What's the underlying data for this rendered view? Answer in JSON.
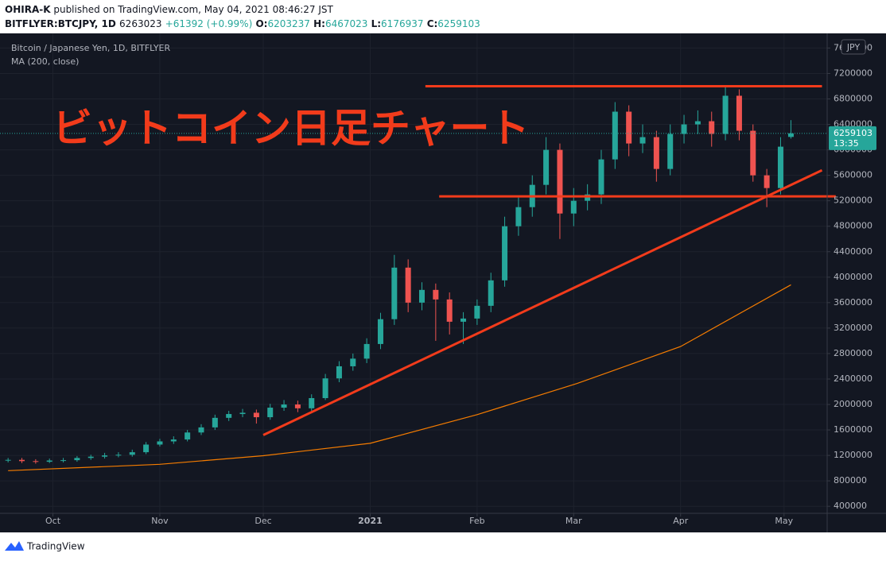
{
  "header": {
    "author": "OHIRA-K",
    "published": "published on TradingView.com, May 04, 2021 08:46:27 JST",
    "symbol": "BITFLYER:BTCJPY, 1D",
    "last": 6263023,
    "change": "+61392 (+0.99%)",
    "ohlc": [
      {
        "label": "O:",
        "value": 6203237
      },
      {
        "label": "H:",
        "value": 6467023
      },
      {
        "label": "L:",
        "value": 6176937
      },
      {
        "label": "C:",
        "value": 6259103
      }
    ]
  },
  "footer": {
    "brand": "TradingView"
  },
  "chart_data": {
    "type": "candlestick",
    "legend_title": "Bitcoin / Japanese Yen, 1D, BITFLYER",
    "annotation": "ビットコイン日足チャート",
    "currency": "JPY",
    "last_price_time": "13:35",
    "up_color": "#26a69a",
    "down_color": "#ef5350",
    "grid": true,
    "x": [
      0,
      4,
      8,
      12,
      16,
      20,
      24,
      28,
      32,
      36,
      40,
      44,
      48,
      52,
      56,
      60,
      64,
      68,
      72,
      76,
      80,
      84,
      88,
      92,
      96,
      100,
      104,
      108,
      112,
      116,
      120,
      124,
      128,
      132,
      136,
      140,
      144,
      148,
      152,
      156,
      160,
      164,
      168,
      172,
      176,
      180,
      184,
      188,
      192,
      196,
      200,
      204,
      208,
      212,
      216,
      220,
      224,
      227
    ],
    "open": [
      1120000,
      1130000,
      1110000,
      1100000,
      1120000,
      1125000,
      1160000,
      1180000,
      1200000,
      1210000,
      1250000,
      1370000,
      1420000,
      1450000,
      1560000,
      1640000,
      1790000,
      1850000,
      1870000,
      1800000,
      1950000,
      2000000,
      1940000,
      2100000,
      2410000,
      2600000,
      2720000,
      2950000,
      3340000,
      4150000,
      3600000,
      3800000,
      3650000,
      3300000,
      3350000,
      3550000,
      3950000,
      4800000,
      5100000,
      5450000,
      6000000,
      5000000,
      5200000,
      5300000,
      5850000,
      6600000,
      6100000,
      6200000,
      5700000,
      6250000,
      6400000,
      6450000,
      6250000,
      6850000,
      6300000,
      5600000,
      5400000,
      6203237
    ],
    "high": [
      1160000,
      1160000,
      1140000,
      1150000,
      1160000,
      1190000,
      1210000,
      1240000,
      1250000,
      1290000,
      1410000,
      1460000,
      1500000,
      1600000,
      1690000,
      1840000,
      1900000,
      1930000,
      1920000,
      2010000,
      2070000,
      2060000,
      2160000,
      2480000,
      2680000,
      2800000,
      3040000,
      3440000,
      4350000,
      4280000,
      3920000,
      3900000,
      3760000,
      3450000,
      3650000,
      4070000,
      4950000,
      5250000,
      5600000,
      6200000,
      6100000,
      5400000,
      5460000,
      6000000,
      6750000,
      6700000,
      6400000,
      6300000,
      6400000,
      6550000,
      6620000,
      6600000,
      7000000,
      6950000,
      6400000,
      5700000,
      6200000,
      6467023
    ],
    "low": [
      1090000,
      1080000,
      1070000,
      1080000,
      1090000,
      1100000,
      1130000,
      1150000,
      1170000,
      1180000,
      1220000,
      1340000,
      1380000,
      1420000,
      1520000,
      1600000,
      1740000,
      1800000,
      1700000,
      1760000,
      1900000,
      1880000,
      1900000,
      2070000,
      2350000,
      2530000,
      2650000,
      2870000,
      3250000,
      3450000,
      3480000,
      3000000,
      3100000,
      2950000,
      3250000,
      3450000,
      3850000,
      4650000,
      4950000,
      5300000,
      4600000,
      4800000,
      5050000,
      5150000,
      5700000,
      5900000,
      5950000,
      5500000,
      5600000,
      6100000,
      6250000,
      6050000,
      6150000,
      6150000,
      5500000,
      5100000,
      5300000,
      6176937
    ],
    "close": [
      1130000,
      1110000,
      1100000,
      1120000,
      1125000,
      1160000,
      1180000,
      1200000,
      1210000,
      1250000,
      1370000,
      1420000,
      1450000,
      1560000,
      1640000,
      1790000,
      1850000,
      1870000,
      1800000,
      1950000,
      2000000,
      1940000,
      2100000,
      2410000,
      2600000,
      2720000,
      2950000,
      3340000,
      4150000,
      3600000,
      3800000,
      3650000,
      3300000,
      3350000,
      3550000,
      3950000,
      4800000,
      5100000,
      5450000,
      6000000,
      5000000,
      5200000,
      5300000,
      5850000,
      6600000,
      6100000,
      6200000,
      5700000,
      6250000,
      6400000,
      6450000,
      6250000,
      6850000,
      6300000,
      5600000,
      5400000,
      6050000,
      6259103
    ],
    "moving_average": {
      "name": "MA (200, close)",
      "color": "#f57c00",
      "x": [
        0,
        44,
        74,
        105,
        136,
        165,
        195,
        227
      ],
      "values": [
        960000,
        1060000,
        1195000,
        1390000,
        1840000,
        2330000,
        2910000,
        3880000
      ]
    },
    "drawings": {
      "color": "#f23b1b",
      "lines": [
        {
          "x": [
            121,
            236
          ],
          "y": [
            7000000,
            7000000
          ]
        },
        {
          "x": [
            125,
            240
          ],
          "y": [
            5270000,
            5270000
          ]
        },
        {
          "x": [
            74,
            236
          ],
          "y": [
            1520000,
            5680000
          ]
        }
      ]
    },
    "xlim": [
      -0.5,
      237.5
    ],
    "ylim": [
      290000,
      7830000
    ],
    "xticks": [
      {
        "value": 13,
        "label": "Oct"
      },
      {
        "value": 44,
        "label": "Nov"
      },
      {
        "value": 74,
        "label": "Dec"
      },
      {
        "value": 105,
        "label": "2021"
      },
      {
        "value": 136,
        "label": "Feb"
      },
      {
        "value": 164,
        "label": "Mar"
      },
      {
        "value": 195,
        "label": "Apr"
      },
      {
        "value": 225,
        "label": "May"
      }
    ],
    "yticks": [
      400000,
      800000,
      1200000,
      1600000,
      2000000,
      2400000,
      2800000,
      3200000,
      3600000,
      4000000,
      4400000,
      4800000,
      5200000,
      5600000,
      6000000,
      6400000,
      6800000,
      7200000,
      7600000
    ]
  }
}
